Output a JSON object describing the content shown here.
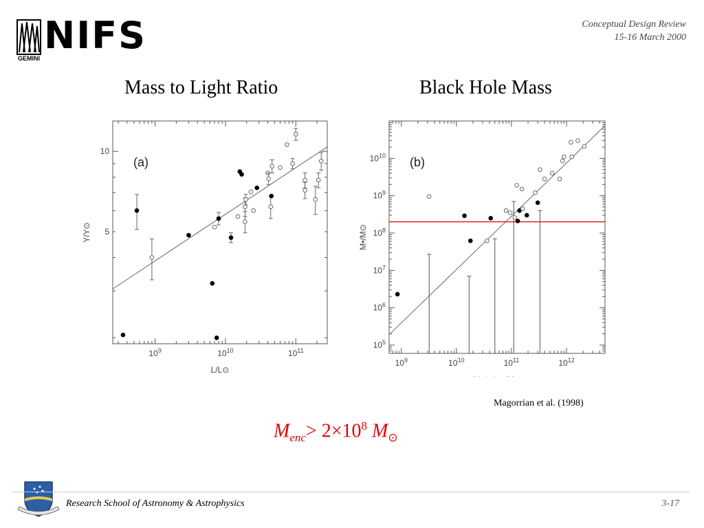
{
  "header": {
    "logo_text": "NIFS",
    "logo_sub": "GEMINI",
    "review_title": "Conceptual Design Review",
    "review_date": "15-16 March 2000"
  },
  "titles": {
    "left": "Mass to Light Ratio",
    "right": "Black Hole Mass"
  },
  "citation": "Magorrian et al. (1998)",
  "formula": {
    "m": "M",
    "enc": "enc",
    "rest": "> 2×10",
    "exp": "8",
    "msun": "M",
    "sun": "⊙"
  },
  "footer": {
    "institution": "Research School of Astronomy & Astrophysics",
    "page": "3-17"
  },
  "chart_data": [
    {
      "type": "scatter",
      "panel_label": "(a)",
      "xlabel": "L/L⊙",
      "ylabel": "Υ/Υ⊙",
      "x_scale": "log",
      "y_scale": "log",
      "xlim": [
        250000000.0,
        280000000000.0
      ],
      "ylim": [
        1.9,
        13
      ],
      "x_ticks": [
        {
          "v": 1000000000.0,
          "b": "10",
          "e": "9"
        },
        {
          "v": 10000000000.0,
          "b": "10",
          "e": "10"
        },
        {
          "v": 100000000000.0,
          "b": "10",
          "e": "11"
        }
      ],
      "y_ticks": [
        {
          "v": 5,
          "t": "5"
        },
        {
          "v": 10,
          "t": "10"
        }
      ],
      "fit_line": [
        [
          250000000.0,
          3.05
        ],
        [
          280000000000.0,
          10.4
        ]
      ],
      "points": [
        {
          "x": 350000000.0,
          "y": 2.05,
          "filled": true,
          "err": 0
        },
        {
          "x": 550000000.0,
          "y": 6.0,
          "filled": true,
          "err": 0.9
        },
        {
          "x": 900000000.0,
          "y": 4.0,
          "filled": false,
          "err": 0.7
        },
        {
          "x": 3000000000.0,
          "y": 4.85,
          "filled": true,
          "err": 0
        },
        {
          "x": 6500000000.0,
          "y": 3.2,
          "filled": true,
          "err": 0
        },
        {
          "x": 7500000000.0,
          "y": 2.0,
          "filled": true,
          "err": 0
        },
        {
          "x": 7000000000.0,
          "y": 5.2,
          "filled": false,
          "err": 0
        },
        {
          "x": 8000000000.0,
          "y": 5.6,
          "filled": true,
          "err": 0.3
        },
        {
          "x": 12000000000.0,
          "y": 4.75,
          "filled": true,
          "err": 0.2
        },
        {
          "x": 15000000000.0,
          "y": 5.7,
          "filled": false,
          "err": 0
        },
        {
          "x": 16000000000.0,
          "y": 8.4,
          "filled": true,
          "err": 0
        },
        {
          "x": 17000000000.0,
          "y": 8.2,
          "filled": true,
          "err": 0
        },
        {
          "x": 19000000000.0,
          "y": 5.45,
          "filled": false,
          "err": 0.5
        },
        {
          "x": 19000000000.0,
          "y": 6.2,
          "filled": false,
          "err": 0.5
        },
        {
          "x": 19500000000.0,
          "y": 6.6,
          "filled": false,
          "err": 0.3
        },
        {
          "x": 23000000000.0,
          "y": 7.05,
          "filled": false,
          "err": 0
        },
        {
          "x": 25000000000.0,
          "y": 6.0,
          "filled": false,
          "err": 0
        },
        {
          "x": 28000000000.0,
          "y": 7.3,
          "filled": true,
          "err": 0
        },
        {
          "x": 40000000000.0,
          "y": 8.3,
          "filled": false,
          "err": 0
        },
        {
          "x": 41000000000.0,
          "y": 7.9,
          "filled": false,
          "err": 0.4
        },
        {
          "x": 44000000000.0,
          "y": 6.2,
          "filled": false,
          "err": 0.6
        },
        {
          "x": 45000000000.0,
          "y": 6.8,
          "filled": true,
          "err": 0
        },
        {
          "x": 46000000000.0,
          "y": 8.8,
          "filled": false,
          "err": 0.5
        },
        {
          "x": 60000000000.0,
          "y": 8.7,
          "filled": false,
          "err": 0
        },
        {
          "x": 75000000000.0,
          "y": 10.6,
          "filled": false,
          "err": 0
        },
        {
          "x": 90000000000.0,
          "y": 9.0,
          "filled": false,
          "err": 0.4
        },
        {
          "x": 100000000000.0,
          "y": 11.6,
          "filled": false,
          "err": 0.6
        },
        {
          "x": 135000000000.0,
          "y": 7.8,
          "filled": false,
          "err": 0.5
        },
        {
          "x": 135000000000.0,
          "y": 7.15,
          "filled": false,
          "err": 0.5
        },
        {
          "x": 190000000000.0,
          "y": 6.6,
          "filled": false,
          "err": 0.8
        },
        {
          "x": 210000000000.0,
          "y": 7.8,
          "filled": false,
          "err": 0.5
        },
        {
          "x": 230000000000.0,
          "y": 9.2,
          "filled": false,
          "err": 0.7
        }
      ]
    },
    {
      "type": "scatter",
      "panel_label": "(b)",
      "xlabel": "M_bulge/M⊙",
      "ylabel": "M•/M⊙",
      "x_scale": "log",
      "y_scale": "log",
      "xlim": [
        600000000.0,
        5000000000000.0
      ],
      "ylim": [
        60000.0,
        100000000000.0
      ],
      "x_ticks": [
        {
          "v": 1000000000.0,
          "b": "10",
          "e": "9"
        },
        {
          "v": 10000000000.0,
          "b": "10",
          "e": "10"
        },
        {
          "v": 100000000000.0,
          "b": "10",
          "e": "11"
        },
        {
          "v": 1000000000000.0,
          "b": "10",
          "e": "12"
        }
      ],
      "y_ticks": [
        {
          "v": 100000.0,
          "b": "10",
          "e": "5"
        },
        {
          "v": 1000000.0,
          "b": "10",
          "e": "6"
        },
        {
          "v": 10000000.0,
          "b": "10",
          "e": "7"
        },
        {
          "v": 100000000.0,
          "b": "10",
          "e": "8"
        },
        {
          "v": 1000000000.0,
          "b": "10",
          "e": "9"
        },
        {
          "v": 10000000000.0,
          "b": "10",
          "e": "10"
        }
      ],
      "fit_line": [
        [
          600000000.0,
          190000.0
        ],
        [
          5000000000000.0,
          75000000000.0
        ]
      ],
      "threshold_y": 200000000.0,
      "threshold_color": "#e00000",
      "points": [
        {
          "x": 850000000.0,
          "y": 2300000.0,
          "filled": true
        },
        {
          "x": 3200000000.0,
          "y": 950000000.0,
          "filled": false
        },
        {
          "x": 14000000000.0,
          "y": 290000000.0,
          "filled": true
        },
        {
          "x": 18000000000.0,
          "y": 62000000.0,
          "filled": true
        },
        {
          "x": 36000000000.0,
          "y": 62000000.0,
          "filled": false
        },
        {
          "x": 42000000000.0,
          "y": 250000000.0,
          "filled": true
        },
        {
          "x": 80000000000.0,
          "y": 400000000.0,
          "filled": false
        },
        {
          "x": 95000000000.0,
          "y": 350000000.0,
          "filled": false
        },
        {
          "x": 115000000000.0,
          "y": 260000000.0,
          "filled": false
        },
        {
          "x": 125000000000.0,
          "y": 1900000000.0,
          "filled": false
        },
        {
          "x": 130000000000.0,
          "y": 210000000.0,
          "filled": true
        },
        {
          "x": 140000000000.0,
          "y": 400000000.0,
          "filled": true
        },
        {
          "x": 155000000000.0,
          "y": 1500000000.0,
          "filled": false
        },
        {
          "x": 160000000000.0,
          "y": 450000000.0,
          "filled": false
        },
        {
          "x": 190000000000.0,
          "y": 300000000.0,
          "filled": true
        },
        {
          "x": 270000000000.0,
          "y": 1200000000.0,
          "filled": false
        },
        {
          "x": 300000000000.0,
          "y": 650000000.0,
          "filled": true
        },
        {
          "x": 330000000000.0,
          "y": 5000000000.0,
          "filled": false
        },
        {
          "x": 400000000000.0,
          "y": 2800000000.0,
          "filled": false
        },
        {
          "x": 550000000000.0,
          "y": 4000000000.0,
          "filled": false
        },
        {
          "x": 750000000000.0,
          "y": 2800000000.0,
          "filled": false
        },
        {
          "x": 850000000000.0,
          "y": 8500000000.0,
          "filled": false
        },
        {
          "x": 900000000000.0,
          "y": 11000000000.0,
          "filled": false
        },
        {
          "x": 1200000000000.0,
          "y": 27000000000.0,
          "filled": false
        },
        {
          "x": 1250000000000.0,
          "y": 11000000000.0,
          "filled": false
        },
        {
          "x": 1600000000000.0,
          "y": 30000000000.0,
          "filled": false
        },
        {
          "x": 2100000000000.0,
          "y": 21000000000.0,
          "filled": false
        }
      ],
      "upper_limits": [
        {
          "x": 3200000000.0,
          "y": 27000000.0
        },
        {
          "x": 17000000000.0,
          "y": 7000000.0
        },
        {
          "x": 50000000000.0,
          "y": 70000000.0
        },
        {
          "x": 110000000000.0,
          "y": 700000000.0
        },
        {
          "x": 330000000000.0,
          "y": 400000000.0
        }
      ]
    }
  ]
}
